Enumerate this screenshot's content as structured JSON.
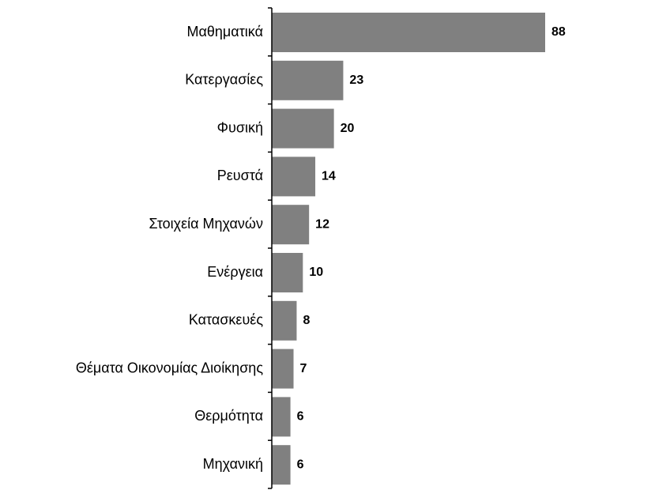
{
  "chart_data": {
    "type": "hbar",
    "categories": [
      "Μαθηματικά",
      "Κατεργασίες",
      "Φυσική",
      "Ρευστά",
      "Στοιχεία Μηχανών",
      "Ενέργεια",
      "Κατασκευές",
      "Θέματα Οικονομίας Διοίκησης",
      "Θερμότητα",
      "Μηχανική"
    ],
    "values": [
      88,
      23,
      20,
      14,
      12,
      10,
      8,
      7,
      6,
      6
    ],
    "color": "#808080"
  }
}
